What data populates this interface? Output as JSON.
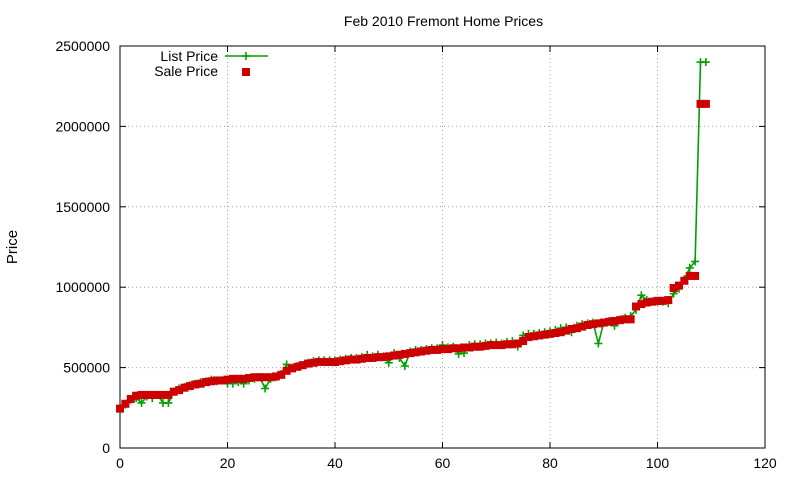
{
  "chart_data": {
    "type": "line",
    "title": "Feb 2010 Fremont Home Prices",
    "xlabel": "",
    "ylabel": "Price",
    "xlim": [
      0,
      120
    ],
    "ylim": [
      0,
      2500000
    ],
    "x_ticks": [
      "0",
      "20",
      "40",
      "60",
      "80",
      "100",
      "120"
    ],
    "y_ticks": [
      "0",
      "500000",
      "1000000",
      "1500000",
      "2000000",
      "2500000"
    ],
    "grid": true,
    "legend_position": "top-left",
    "series": [
      {
        "name": "List Price",
        "style": "line-points",
        "marker": "plus",
        "color": "#00a000",
        "x": [
          0,
          1,
          2,
          3,
          4,
          5,
          6,
          7,
          8,
          9,
          10,
          11,
          12,
          13,
          14,
          15,
          16,
          17,
          18,
          19,
          20,
          21,
          22,
          23,
          24,
          25,
          26,
          27,
          28,
          29,
          30,
          31,
          32,
          33,
          34,
          35,
          36,
          37,
          38,
          39,
          40,
          41,
          42,
          43,
          44,
          45,
          46,
          47,
          48,
          49,
          50,
          51,
          52,
          53,
          54,
          55,
          56,
          57,
          58,
          59,
          60,
          61,
          62,
          63,
          64,
          65,
          66,
          67,
          68,
          69,
          70,
          71,
          72,
          73,
          74,
          75,
          76,
          77,
          78,
          79,
          80,
          81,
          82,
          83,
          84,
          85,
          86,
          87,
          88,
          89,
          90,
          91,
          92,
          93,
          94,
          95,
          96,
          97,
          98,
          99,
          100,
          101,
          102,
          103,
          104,
          105,
          106,
          107,
          108,
          109
        ],
        "values": [
          230000,
          270000,
          300000,
          310000,
          280000,
          320000,
          310000,
          330000,
          280000,
          280000,
          350000,
          370000,
          380000,
          390000,
          400000,
          410000,
          415000,
          425000,
          415000,
          420000,
          400000,
          400000,
          410000,
          400000,
          420000,
          430000,
          440000,
          370000,
          430000,
          440000,
          460000,
          520000,
          500000,
          510000,
          515000,
          530000,
          540000,
          545000,
          545000,
          545000,
          545000,
          550000,
          555000,
          560000,
          560000,
          565000,
          580000,
          570000,
          580000,
          570000,
          530000,
          590000,
          560000,
          510000,
          600000,
          610000,
          610000,
          615000,
          620000,
          620000,
          640000,
          625000,
          630000,
          585000,
          590000,
          640000,
          645000,
          645000,
          650000,
          650000,
          655000,
          650000,
          660000,
          665000,
          630000,
          700000,
          710000,
          710000,
          715000,
          720000,
          725000,
          735000,
          745000,
          750000,
          720000,
          760000,
          770000,
          775000,
          780000,
          650000,
          780000,
          790000,
          760000,
          800000,
          810000,
          820000,
          860000,
          950000,
          920000,
          910000,
          910000,
          910000,
          900000,
          960000,
          990000,
          1050000,
          1120000,
          1160000,
          2400000,
          2400000
        ]
      },
      {
        "name": "Sale Price",
        "style": "points",
        "marker": "square",
        "color": "#cc0000",
        "x": [
          0,
          1,
          2,
          3,
          4,
          5,
          6,
          7,
          8,
          9,
          10,
          11,
          12,
          13,
          14,
          15,
          16,
          17,
          18,
          19,
          20,
          21,
          22,
          23,
          24,
          25,
          26,
          27,
          28,
          29,
          30,
          31,
          32,
          33,
          34,
          35,
          36,
          37,
          38,
          39,
          40,
          41,
          42,
          43,
          44,
          45,
          46,
          47,
          48,
          49,
          50,
          51,
          52,
          53,
          54,
          55,
          56,
          57,
          58,
          59,
          60,
          61,
          62,
          63,
          64,
          65,
          66,
          67,
          68,
          69,
          70,
          71,
          72,
          73,
          74,
          75,
          76,
          77,
          78,
          79,
          80,
          81,
          82,
          83,
          84,
          85,
          86,
          87,
          88,
          89,
          90,
          91,
          92,
          93,
          94,
          95,
          96,
          97,
          98,
          99,
          100,
          101,
          102,
          103,
          104,
          105,
          106,
          107,
          108,
          109
        ],
        "values": [
          245000,
          275000,
          305000,
          325000,
          330000,
          330000,
          330000,
          330000,
          330000,
          330000,
          350000,
          360000,
          375000,
          385000,
          395000,
          400000,
          410000,
          415000,
          420000,
          420000,
          425000,
          430000,
          430000,
          430000,
          435000,
          440000,
          440000,
          440000,
          440000,
          445000,
          455000,
          480000,
          495000,
          505000,
          515000,
          525000,
          530000,
          535000,
          535000,
          535000,
          535000,
          540000,
          545000,
          550000,
          550000,
          555000,
          560000,
          560000,
          565000,
          565000,
          570000,
          575000,
          580000,
          585000,
          590000,
          595000,
          600000,
          605000,
          610000,
          610000,
          615000,
          615000,
          620000,
          620000,
          625000,
          625000,
          630000,
          630000,
          635000,
          640000,
          640000,
          640000,
          645000,
          645000,
          650000,
          665000,
          690000,
          695000,
          700000,
          705000,
          710000,
          715000,
          720000,
          730000,
          740000,
          745000,
          755000,
          765000,
          770000,
          775000,
          780000,
          785000,
          790000,
          795000,
          800000,
          800000,
          880000,
          895000,
          905000,
          910000,
          915000,
          915000,
          920000,
          995000,
          1010000,
          1040000,
          1070000,
          1070000,
          2140000,
          2140000
        ]
      }
    ]
  }
}
